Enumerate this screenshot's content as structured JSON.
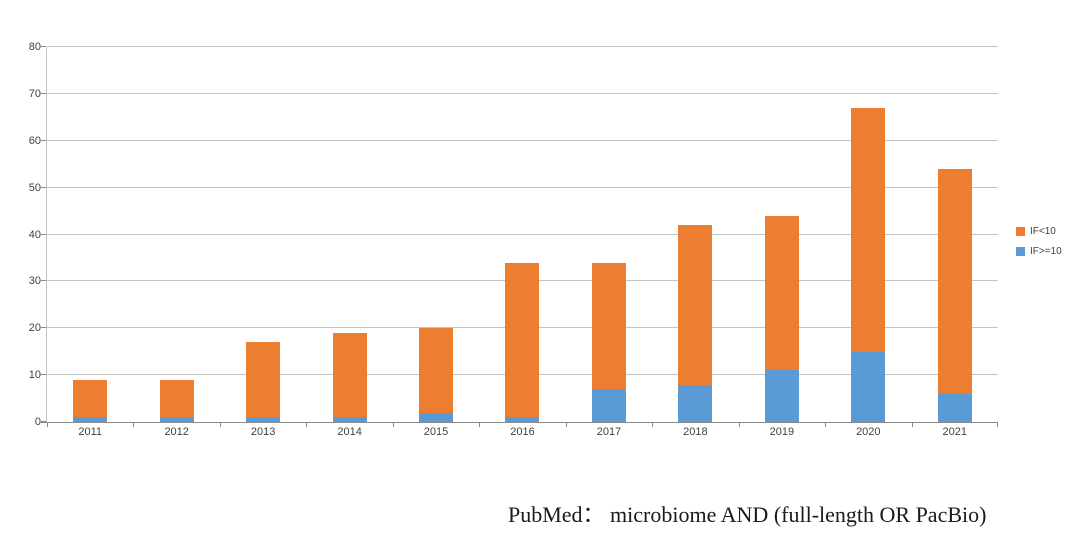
{
  "chart_data": {
    "type": "bar",
    "stacked": true,
    "title": "",
    "xlabel": "",
    "ylabel": "",
    "categories": [
      "2011",
      "2012",
      "2013",
      "2014",
      "2015",
      "2016",
      "2017",
      "2018",
      "2019",
      "2020",
      "2021"
    ],
    "series": [
      {
        "name": "IF<10",
        "color": "#ED7D31",
        "values": [
          8,
          8,
          16,
          18,
          18,
          33,
          27,
          34,
          33,
          52,
          48
        ]
      },
      {
        "name": "IF>=10",
        "color": "#5B9BD5",
        "values": [
          1,
          1,
          1,
          1,
          2,
          1,
          7,
          8,
          11,
          15,
          6
        ]
      }
    ],
    "totals": [
      9,
      9,
      17,
      19,
      20,
      34,
      34,
      42,
      44,
      67,
      54
    ],
    "ylim": [
      0,
      80
    ],
    "ytick_step": 10,
    "yticks": [
      "0",
      "10",
      "20",
      "30",
      "40",
      "50",
      "60",
      "70",
      "80"
    ],
    "grid": "horizontal",
    "legend_position": "right",
    "legend": [
      "IF<10",
      "IF>=10"
    ]
  },
  "caption": {
    "text": "PubMed： microbiome AND (full-length OR PacBio)"
  },
  "colors": {
    "axis": "#8a8a8a",
    "gridline": "#c3c3c3",
    "tick_label": "#3f3f3f",
    "background": "#ffffff"
  }
}
